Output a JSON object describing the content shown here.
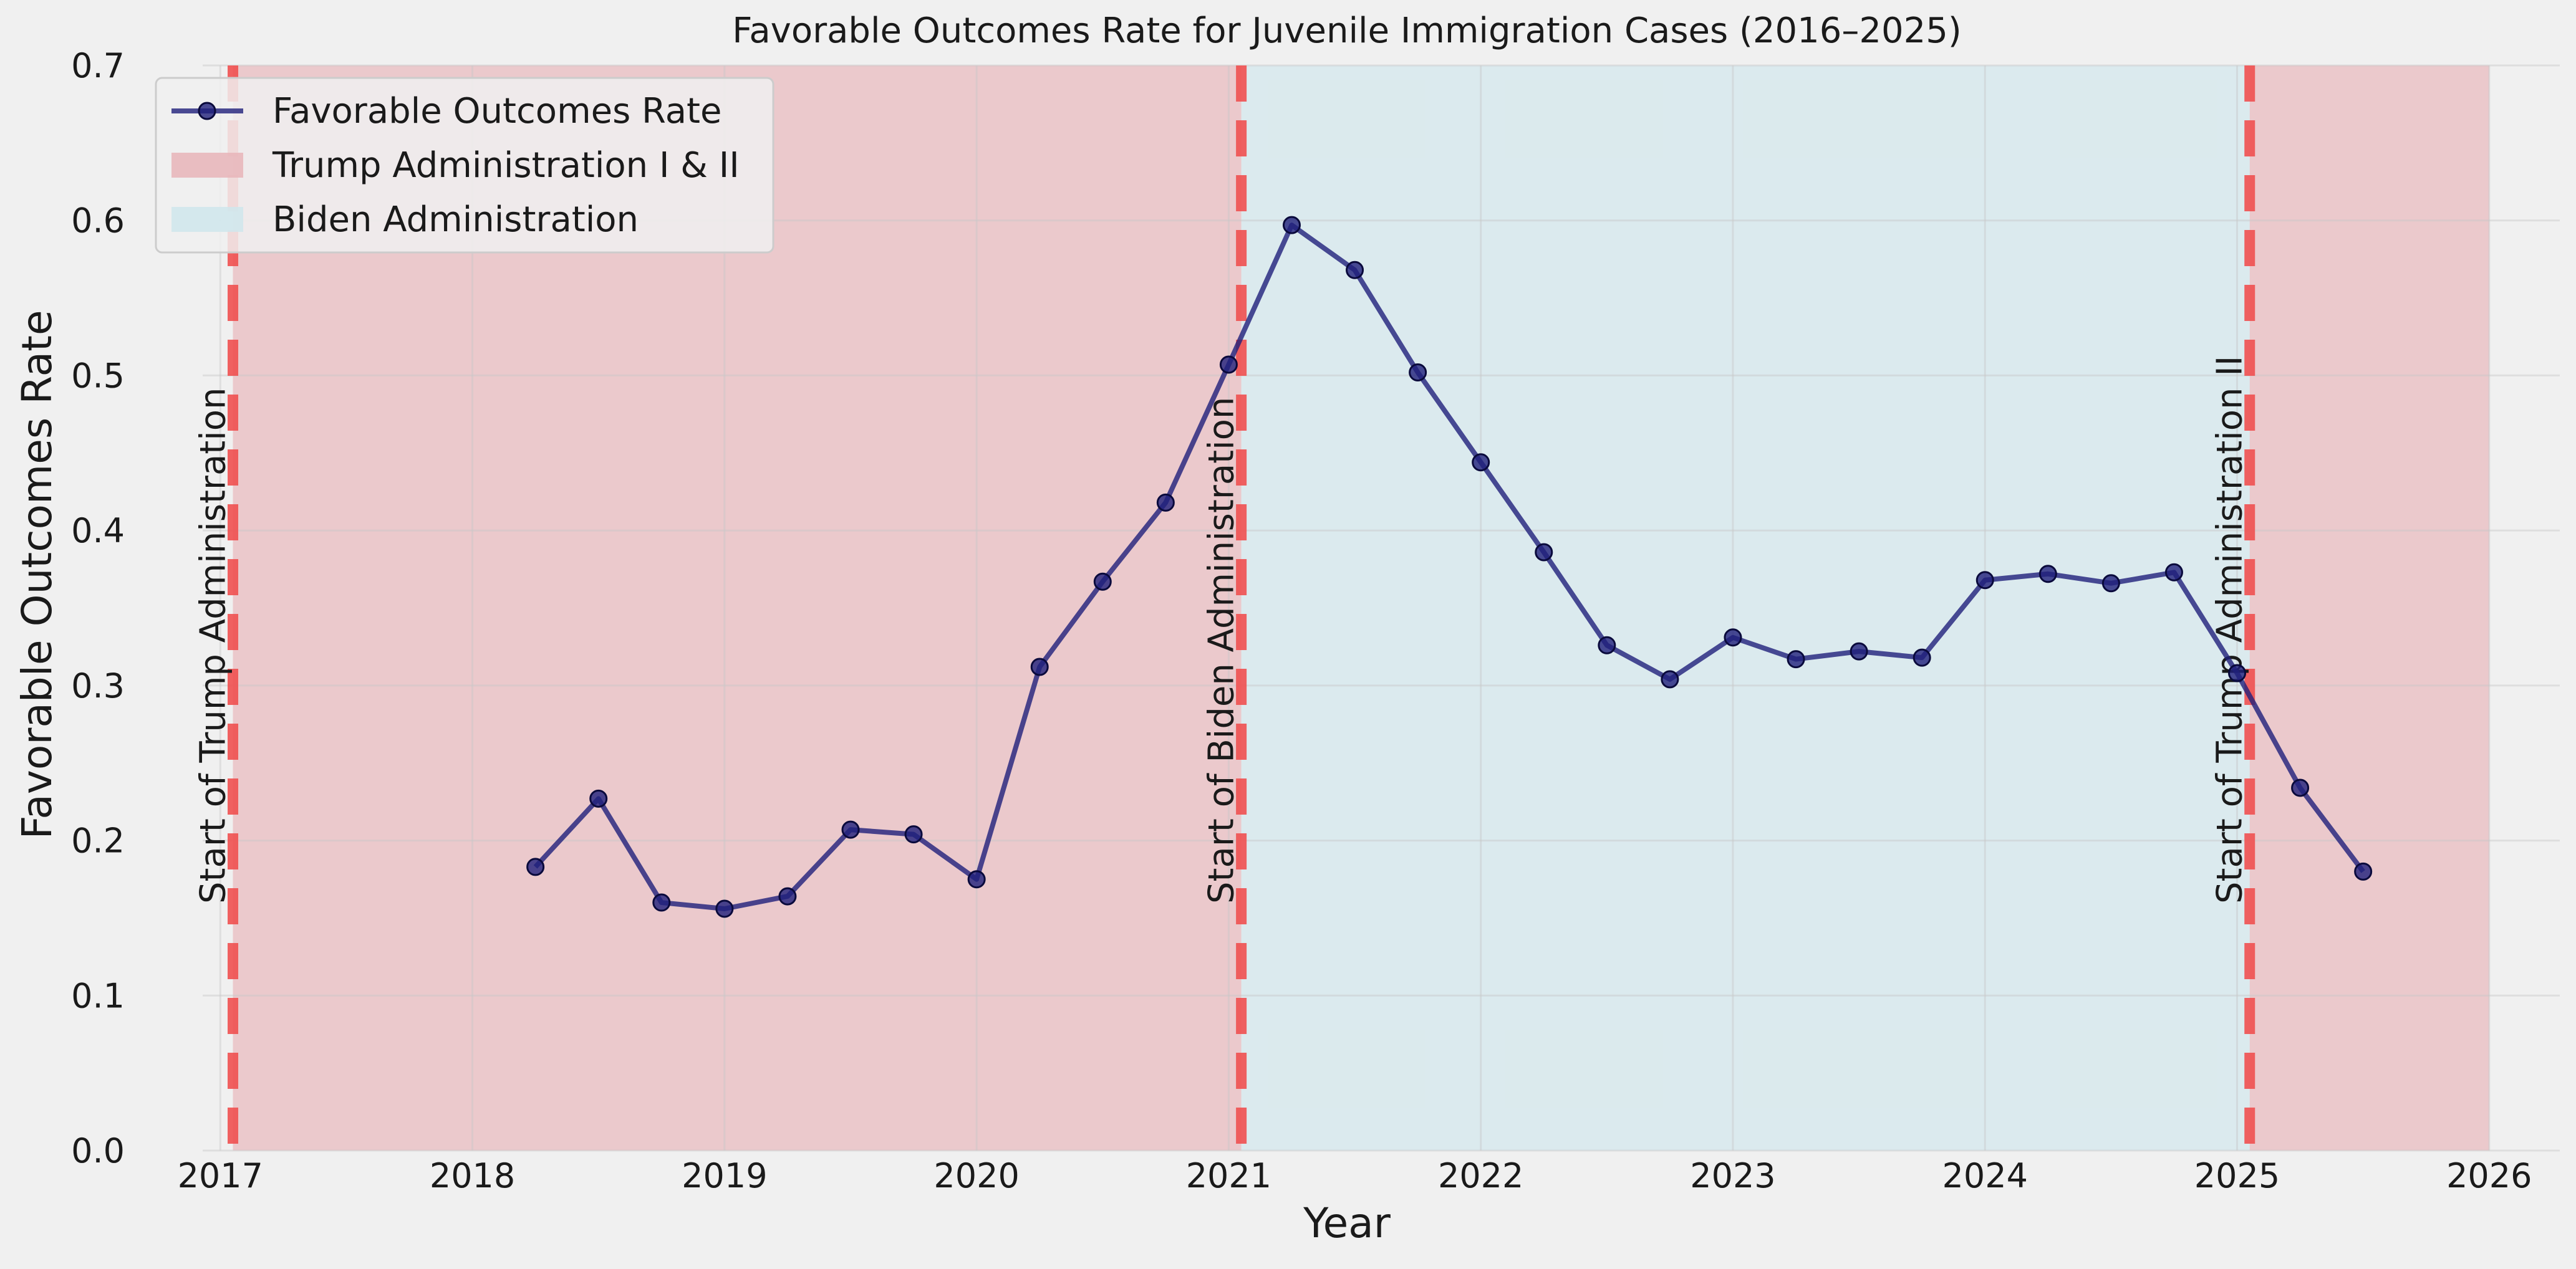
{
  "chart_data": {
    "type": "line",
    "title": "Favorable Outcomes Rate for Juvenile Immigration Cases (2016–2025)",
    "xlabel": "Year",
    "ylabel": "Favorable Outcomes Rate",
    "xlim": [
      2016.93,
      2026.28
    ],
    "ylim": [
      0.0,
      0.7
    ],
    "x_ticks": [
      "2017",
      "2018",
      "2019",
      "2020",
      "2021",
      "2022",
      "2023",
      "2024",
      "2025",
      "2026"
    ],
    "y_ticks": [
      "0.0",
      "0.1",
      "0.2",
      "0.3",
      "0.4",
      "0.5",
      "0.6",
      "0.7"
    ],
    "grid": true,
    "legend_position": "top-left",
    "series": [
      {
        "name": "Favorable Outcomes Rate",
        "color": "#1f1f7a",
        "x": [
          2018.25,
          2018.5,
          2018.75,
          2019.0,
          2019.25,
          2019.5,
          2019.75,
          2020.0,
          2020.25,
          2020.5,
          2020.75,
          2021.0,
          2021.25,
          2021.5,
          2021.75,
          2022.0,
          2022.25,
          2022.5,
          2022.75,
          2023.0,
          2023.25,
          2023.5,
          2023.75,
          2024.0,
          2024.25,
          2024.5,
          2024.75,
          2025.0,
          2025.25,
          2025.5
        ],
        "y": [
          0.183,
          0.227,
          0.16,
          0.156,
          0.164,
          0.207,
          0.204,
          0.175,
          0.312,
          0.367,
          0.418,
          0.507,
          0.597,
          0.568,
          0.502,
          0.444,
          0.386,
          0.326,
          0.304,
          0.331,
          0.317,
          0.322,
          0.318,
          0.368,
          0.372,
          0.366,
          0.373,
          0.308,
          0.234,
          0.18
        ]
      }
    ],
    "shaded_regions": [
      {
        "name": "Trump Administration I & II",
        "color": "#e8b4b8",
        "x_start": 2017.05,
        "x_end": 2021.05
      },
      {
        "name": "Biden Administration",
        "color": "#cfe6ec",
        "x_start": 2021.05,
        "x_end": 2025.05
      },
      {
        "name": "",
        "color": "#e8b4b8",
        "x_start": 2025.05,
        "x_end": 2026.0
      }
    ],
    "vlines": [
      {
        "x": 2017.05,
        "label": "Start of Trump Administration",
        "color": "#f05050"
      },
      {
        "x": 2021.05,
        "label": "Start of Biden Administration",
        "color": "#f05050"
      },
      {
        "x": 2025.05,
        "label": "Start of Trump Administration II",
        "color": "#f05050"
      }
    ],
    "legend": [
      {
        "label": "Favorable Outcomes Rate",
        "kind": "line",
        "color": "#1f1f7a"
      },
      {
        "label": "Trump Administration I & II",
        "kind": "patch",
        "color": "#e8b4b8"
      },
      {
        "label": "Biden Administration",
        "kind": "patch",
        "color": "#cfe6ec"
      }
    ]
  }
}
